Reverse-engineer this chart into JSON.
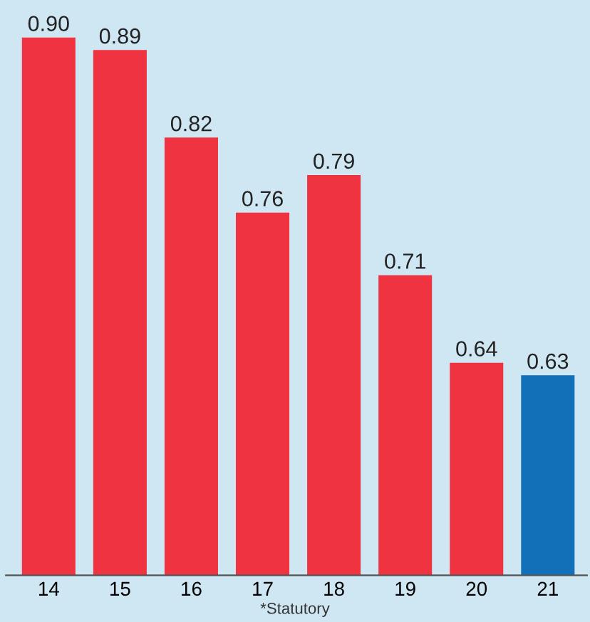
{
  "chart_data": {
    "type": "bar",
    "categories": [
      "14",
      "15",
      "16",
      "17",
      "18",
      "19",
      "20",
      "21"
    ],
    "values": [
      0.9,
      0.89,
      0.82,
      0.76,
      0.79,
      0.71,
      0.64,
      0.63
    ],
    "colors": [
      "#ef3340",
      "#ef3340",
      "#ef3340",
      "#ef3340",
      "#ef3340",
      "#ef3340",
      "#ef3340",
      "#1170b8"
    ],
    "ylim": [
      0.47,
      0.93
    ],
    "tick_labels": "x",
    "value_labels": [
      "0.90",
      "0.89",
      "0.82",
      "0.76",
      "0.79",
      "0.71",
      "0.64",
      "0.63"
    ],
    "grid": false,
    "annotations": [
      "*Statutory"
    ]
  }
}
